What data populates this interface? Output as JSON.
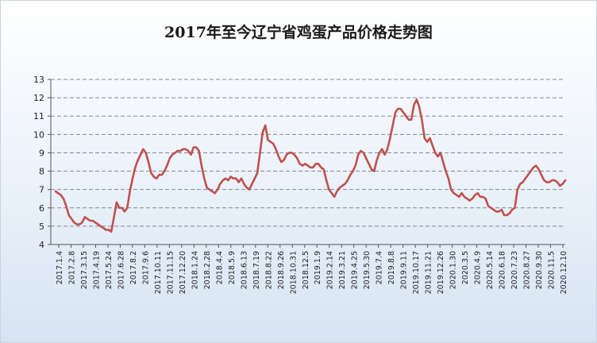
{
  "title": "2017年至今辽宁省鸡蛋产品价格走势图",
  "chart_data": {
    "type": "line",
    "title": "2017年至今辽宁省鸡蛋产品价格走势图",
    "xlabel": "",
    "ylabel": "",
    "ylim": [
      4,
      13
    ],
    "yticks": [
      4,
      5,
      6,
      7,
      8,
      9,
      10,
      11,
      12,
      13
    ],
    "grid": true,
    "legend": "none",
    "line_color": "#c0504d",
    "tick_labels_x": [
      "2017.1.4",
      "2017.2.8",
      "2017.3.15",
      "2017.4.19",
      "2017.5.24",
      "2017.6.28",
      "2017.8.2",
      "2017.9.6",
      "2017.10.11",
      "2017.11.15",
      "2017.12.20",
      "2018.1.24",
      "2018.2.28",
      "2018.4.4",
      "2018.5.9",
      "2018.6.13",
      "2018.7.19",
      "2018.8.22",
      "2018.9.26",
      "2018.10.31",
      "2018.12.5",
      "2019.1.9",
      "2019.2.14",
      "2019.3.21",
      "2019.4.25",
      "2019.5.30",
      "2019.7.4",
      "2019.8.8",
      "2019.9.11",
      "2019.10.17",
      "2019.11.21",
      "2019.12.26",
      "2020.1.30",
      "2020.3.5",
      "2020.4.9",
      "2020.5.14",
      "2020.6.18",
      "2020.7.23",
      "2020.8.27",
      "2020.9.30",
      "2020.11.5",
      "2020.12.10"
    ],
    "values": [
      6.9,
      6.8,
      6.7,
      6.5,
      6.1,
      5.6,
      5.4,
      5.2,
      5.1,
      5.1,
      5.2,
      5.5,
      5.4,
      5.3,
      5.3,
      5.2,
      5.1,
      5.0,
      4.9,
      4.8,
      4.8,
      4.7,
      5.5,
      6.3,
      6.0,
      6.0,
      5.8,
      6.0,
      6.9,
      7.6,
      8.2,
      8.6,
      8.9,
      9.2,
      9.0,
      8.5,
      7.9,
      7.7,
      7.6,
      7.8,
      7.8,
      8.0,
      8.3,
      8.7,
      8.9,
      9.0,
      9.1,
      9.1,
      9.2,
      9.2,
      9.1,
      8.9,
      9.3,
      9.3,
      9.1,
      8.3,
      7.6,
      7.1,
      7.0,
      6.9,
      6.8,
      7.0,
      7.3,
      7.5,
      7.6,
      7.5,
      7.7,
      7.6,
      7.6,
      7.4,
      7.6,
      7.3,
      7.1,
      7.0,
      7.3,
      7.6,
      7.9,
      9.0,
      10.1,
      10.5,
      9.7,
      9.6,
      9.5,
      9.2,
      8.8,
      8.5,
      8.6,
      8.9,
      9.0,
      9.0,
      8.9,
      8.7,
      8.4,
      8.3,
      8.4,
      8.3,
      8.2,
      8.2,
      8.4,
      8.4,
      8.2,
      8.1,
      7.5,
      7.0,
      6.8,
      6.6,
      6.9,
      7.1,
      7.2,
      7.3,
      7.5,
      7.8,
      8.0,
      8.3,
      8.9,
      9.1,
      9.0,
      8.7,
      8.4,
      8.1,
      8.0,
      8.6,
      9.0,
      9.2,
      8.9,
      9.2,
      9.8,
      10.5,
      11.2,
      11.4,
      11.4,
      11.2,
      11.0,
      10.8,
      10.8,
      11.6,
      11.9,
      11.5,
      10.8,
      9.8,
      9.6,
      9.8,
      9.4,
      9.0,
      8.8,
      9.0,
      8.5,
      8.0,
      7.6,
      7.0,
      6.8,
      6.7,
      6.6,
      6.8,
      6.6,
      6.5,
      6.4,
      6.5,
      6.7,
      6.8,
      6.6,
      6.6,
      6.5,
      6.1,
      6.0,
      5.9,
      5.8,
      5.8,
      5.9,
      5.6,
      5.6,
      5.7,
      5.9,
      6.0,
      7.0,
      7.3,
      7.4,
      7.6,
      7.8,
      8.0,
      8.2,
      8.3,
      8.1,
      7.8,
      7.5,
      7.4,
      7.4,
      7.5,
      7.5,
      7.4,
      7.2,
      7.3,
      7.5
    ]
  }
}
